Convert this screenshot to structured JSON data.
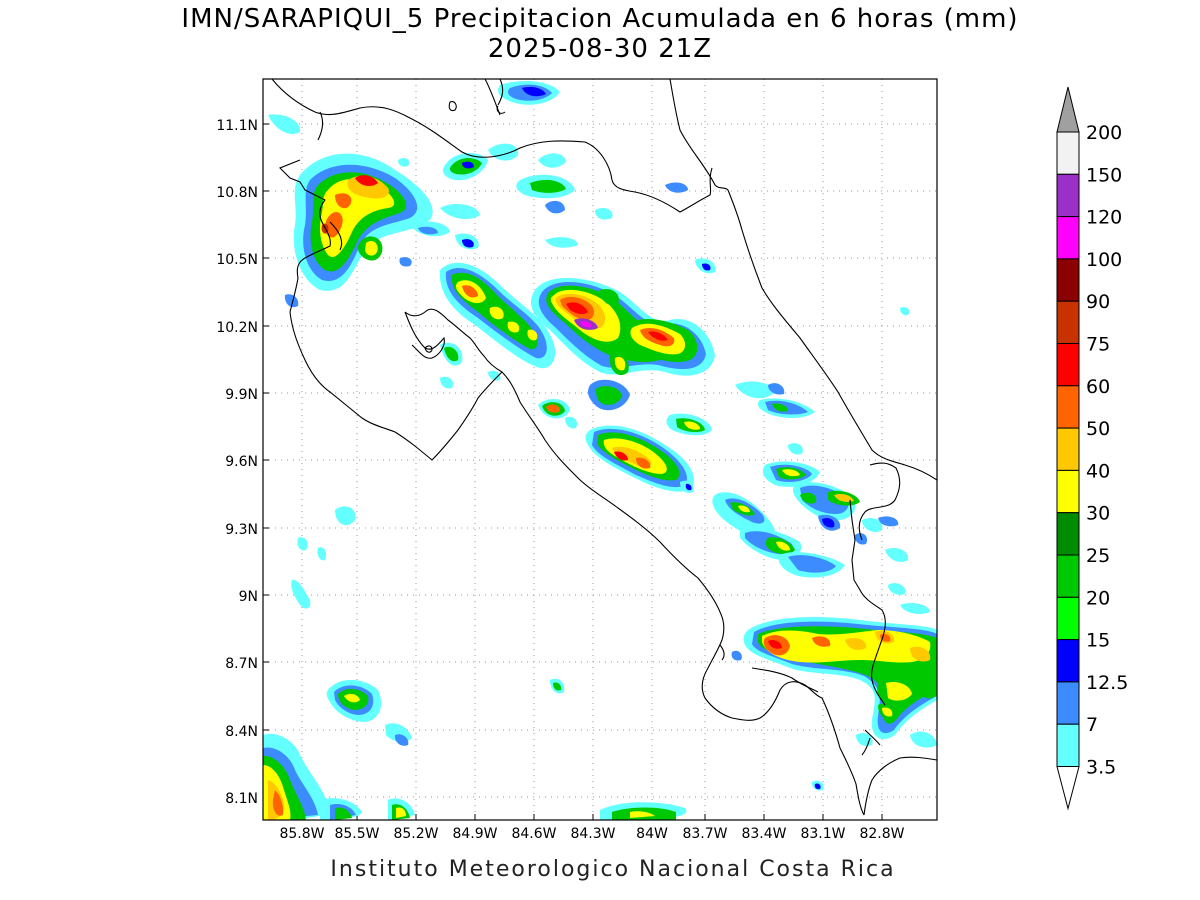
{
  "title": {
    "line1": "IMN/SARAPIQUI_5 Precipitacion Acumulada en 6 horas (mm)",
    "line2": "2025-08-30 21Z"
  },
  "footer": "Instituto Meteorologico Nacional Costa Rica",
  "map": {
    "lat_labels": [
      "11.1N",
      "10.8N",
      "10.5N",
      "10.2N",
      "9.9N",
      "9.6N",
      "9.3N",
      "9N",
      "8.7N",
      "8.4N",
      "8.1N"
    ],
    "lon_labels": [
      "85.8W",
      "85.5W",
      "85.2W",
      "84.9W",
      "84.6W",
      "84.3W",
      "84W",
      "83.7W",
      "83.4W",
      "83.1W",
      "82.8W"
    ],
    "grid": "dotted"
  },
  "colorbar": {
    "labels": [
      "200",
      "150",
      "120",
      "100",
      "90",
      "75",
      "60",
      "50",
      "40",
      "30",
      "25",
      "20",
      "15",
      "12.5",
      "7",
      "3.5"
    ],
    "colors": [
      "#f2f2f2",
      "#9b30c8",
      "#ff00ff",
      "#8b0000",
      "#c83200",
      "#ff0000",
      "#ff6400",
      "#ffc800",
      "#ffff00",
      "#008c00",
      "#00c800",
      "#00ff00",
      "#0000ff",
      "#3c8cff",
      "#64ffff"
    ],
    "upper_arrow_color": "#a0a0a0",
    "lower_arrow_color": "#ffffff"
  },
  "precip_legend_colors": {
    "c3": "#64ffff",
    "c7": "#3c8cff",
    "c12": "#0000ff",
    "c15": "#00ff00",
    "c20": "#00c800",
    "c25": "#008c00",
    "c30": "#ffff00",
    "c40": "#ffc800",
    "c50": "#ff6400",
    "c60": "#ff0000",
    "c90": "#c83200"
  }
}
